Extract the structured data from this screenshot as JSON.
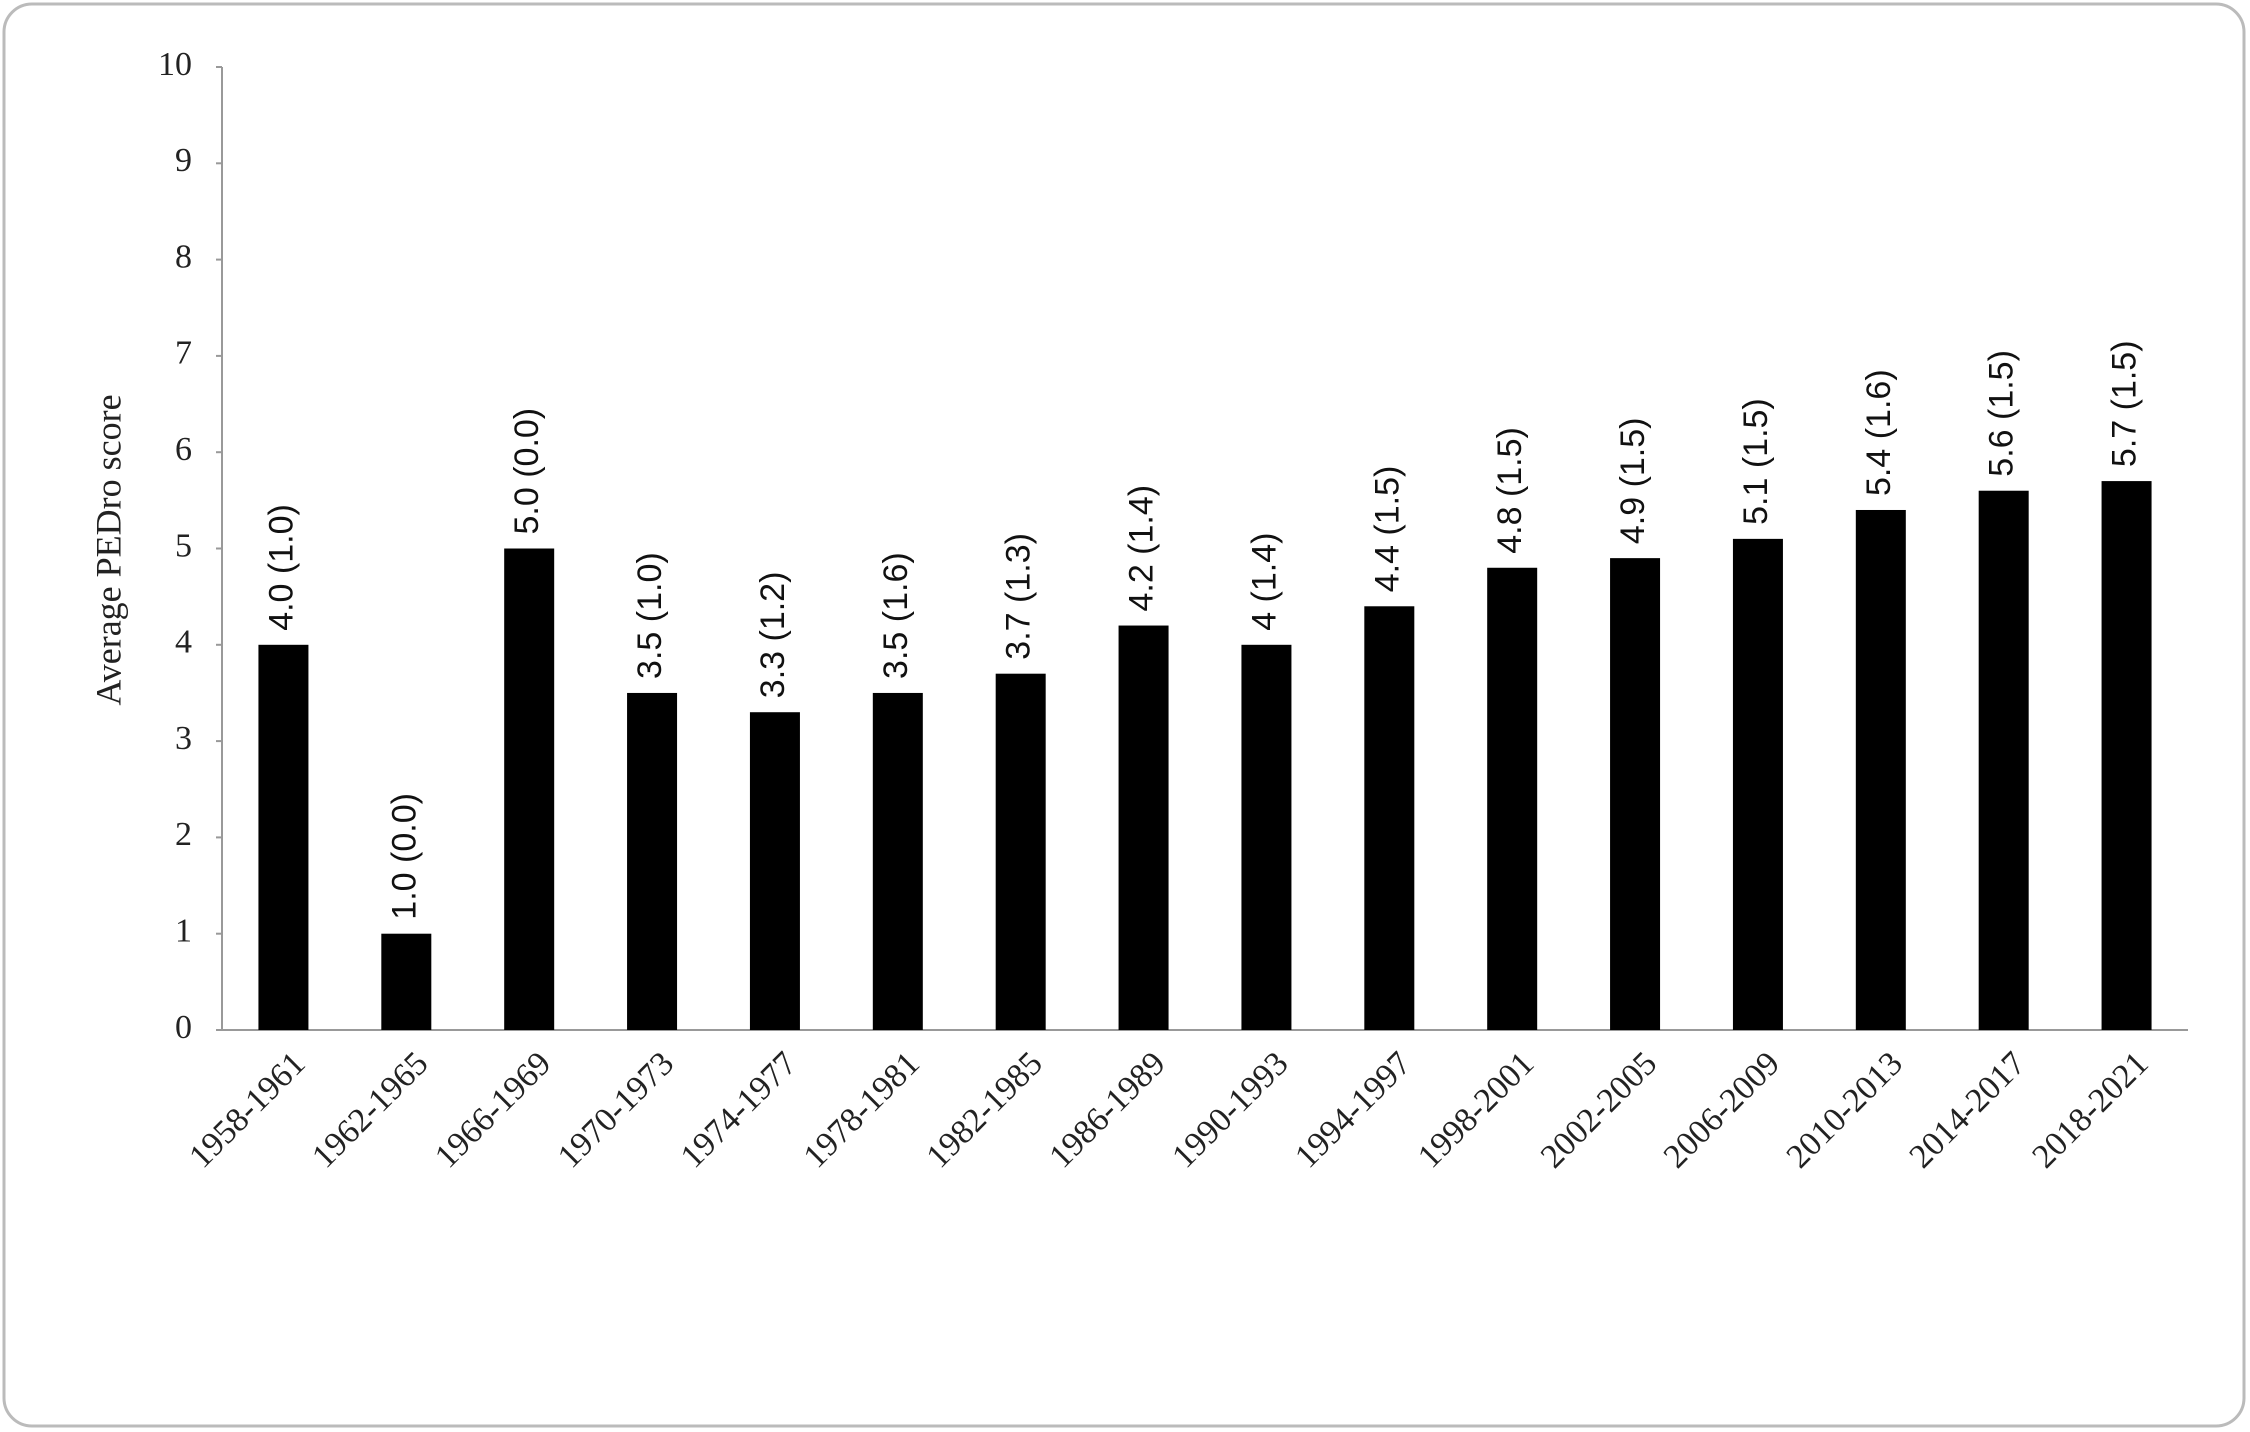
{
  "chart_data": {
    "type": "bar",
    "y_label": "Average PEDro score",
    "categories": [
      "1958-1961",
      "1962-1965",
      "1966-1969",
      "1970-1973",
      "1974-1977",
      "1978-1981",
      "1982-1985",
      "1986-1989",
      "1990-1993",
      "1994-1997",
      "1998-2001",
      "2002-2005",
      "2006-2009",
      "2010-2013",
      "2014-2017",
      "2018-2021"
    ],
    "values": [
      4.0,
      1.0,
      5.0,
      3.5,
      3.3,
      3.5,
      3.7,
      4.2,
      4,
      4.4,
      4.8,
      4.9,
      5.1,
      5.4,
      5.6,
      5.7
    ],
    "value_labels": [
      "4.0 (1.0)",
      "1.0 (0.0)",
      "5.0 (0.0)",
      "3.5 (1.0)",
      "3.3 (1.2)",
      "3.5 (1.6)",
      "3.7 (1.3)",
      "4.2 (1.4)",
      "4 (1.4)",
      "4.4 (1.5)",
      "4.8 (1.5)",
      "4.9 (1.5)",
      "5.1 (1.5)",
      "5.4 (1.6)",
      "5.6 (1.5)",
      "5.7 (1.5)"
    ],
    "color": "#000000",
    "ylim": [
      0,
      10
    ],
    "yticks": [
      0,
      1,
      2,
      3,
      4,
      5,
      6,
      7,
      8,
      9,
      10
    ],
    "grid": false
  }
}
